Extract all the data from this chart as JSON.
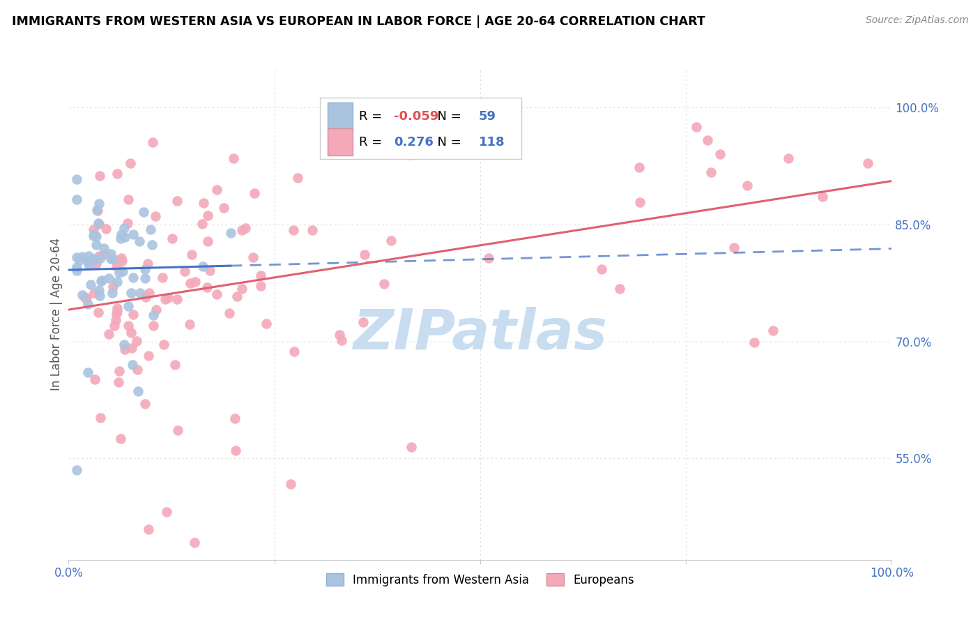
{
  "title": "IMMIGRANTS FROM WESTERN ASIA VS EUROPEAN IN LABOR FORCE | AGE 20-64 CORRELATION CHART",
  "source": "Source: ZipAtlas.com",
  "ylabel": "In Labor Force | Age 20-64",
  "xlim": [
    0.0,
    1.0
  ],
  "ylim": [
    0.42,
    1.05
  ],
  "yticks": [
    0.55,
    0.7,
    0.85,
    1.0
  ],
  "ytick_labels": [
    "55.0%",
    "70.0%",
    "85.0%",
    "100.0%"
  ],
  "xticks": [
    0.0,
    0.25,
    0.5,
    0.75,
    1.0
  ],
  "xtick_labels": [
    "0.0%",
    "",
    "",
    "",
    "100.0%"
  ],
  "blue_R": -0.059,
  "blue_N": 59,
  "pink_R": 0.276,
  "pink_N": 118,
  "blue_color": "#aac4e0",
  "pink_color": "#f4a8b8",
  "blue_line_color": "#4472c4",
  "pink_line_color": "#e06070",
  "watermark": "ZIPatlas",
  "watermark_color": "#c8ddf0",
  "legend_box_color": "#ffffff",
  "legend_border_color": "#cccccc",
  "tick_color": "#4472c4",
  "grid_color": "#e0e0e0",
  "title_color": "#000000",
  "source_color": "#888888"
}
